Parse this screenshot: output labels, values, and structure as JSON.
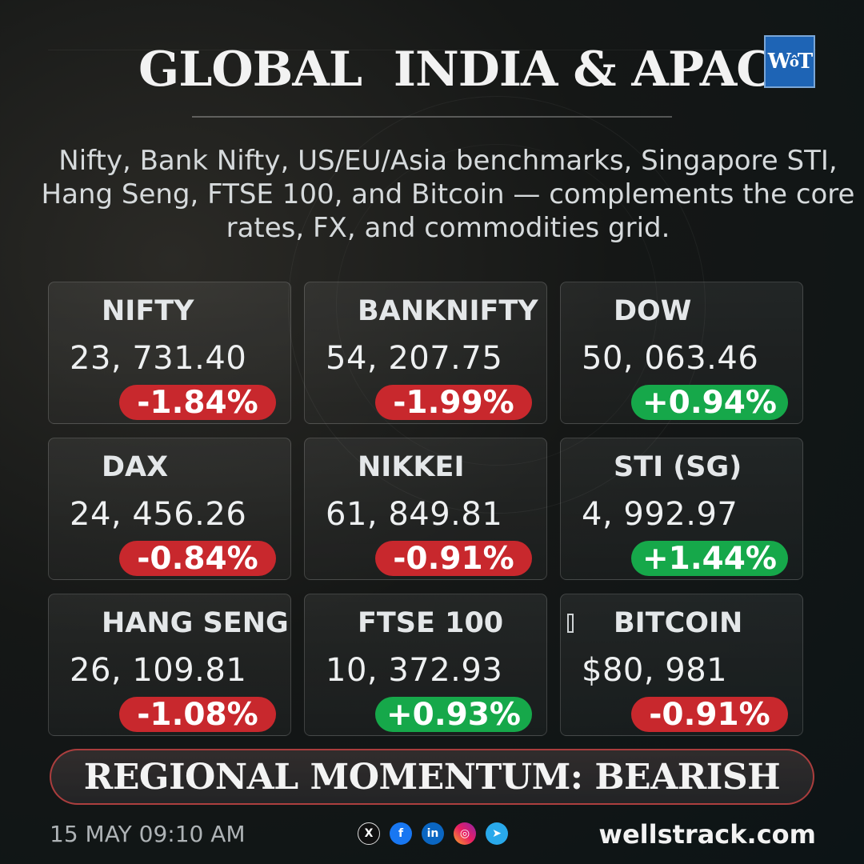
{
  "header": {
    "title": "GLOBAL  INDIA & APAC",
    "logo_text": "WT",
    "subtitle": "Nifty, Bank Nifty, US/EU/Asia benchmarks, Singapore STI, Hang Seng, FTSE 100, and Bitcoin — complements the core rates, FX, and commodities grid."
  },
  "cards": [
    {
      "name": "NIFTY",
      "value": "23, 731.40",
      "change": "-1.84%",
      "direction": "down"
    },
    {
      "name": "BANKNIFTY",
      "value": "54, 207.75",
      "change": "-1.99%",
      "direction": "down"
    },
    {
      "name": "DOW",
      "value": "50, 063.46",
      "change": "+0.94%",
      "direction": "up"
    },
    {
      "name": "DAX",
      "value": "24, 456.26",
      "change": "-0.84%",
      "direction": "down"
    },
    {
      "name": "NIKKEI",
      "value": "61, 849.81",
      "change": "-0.91%",
      "direction": "down"
    },
    {
      "name": "STI (SG)",
      "value": "4, 992.97",
      "change": "+1.44%",
      "direction": "up"
    },
    {
      "name": "HANG SENG",
      "value": "26, 109.81",
      "change": "-1.08%",
      "direction": "down"
    },
    {
      "name": "FTSE 100",
      "value": "10, 372.93",
      "change": "+0.93%",
      "direction": "up"
    },
    {
      "name": "BITCOIN",
      "value": "$80, 981",
      "change": "-0.91%",
      "direction": "down"
    }
  ],
  "colors": {
    "down": "#c8282d",
    "up": "#16a84a"
  },
  "banner": {
    "text": "REGIONAL MOMENTUM: BEARISH"
  },
  "footer": {
    "date": "15 MAY 09:10 AM",
    "social": [
      "x-icon",
      "facebook-icon",
      "linkedin-icon",
      "instagram-icon",
      "telegram-icon"
    ],
    "site": "wellstrack.com"
  }
}
